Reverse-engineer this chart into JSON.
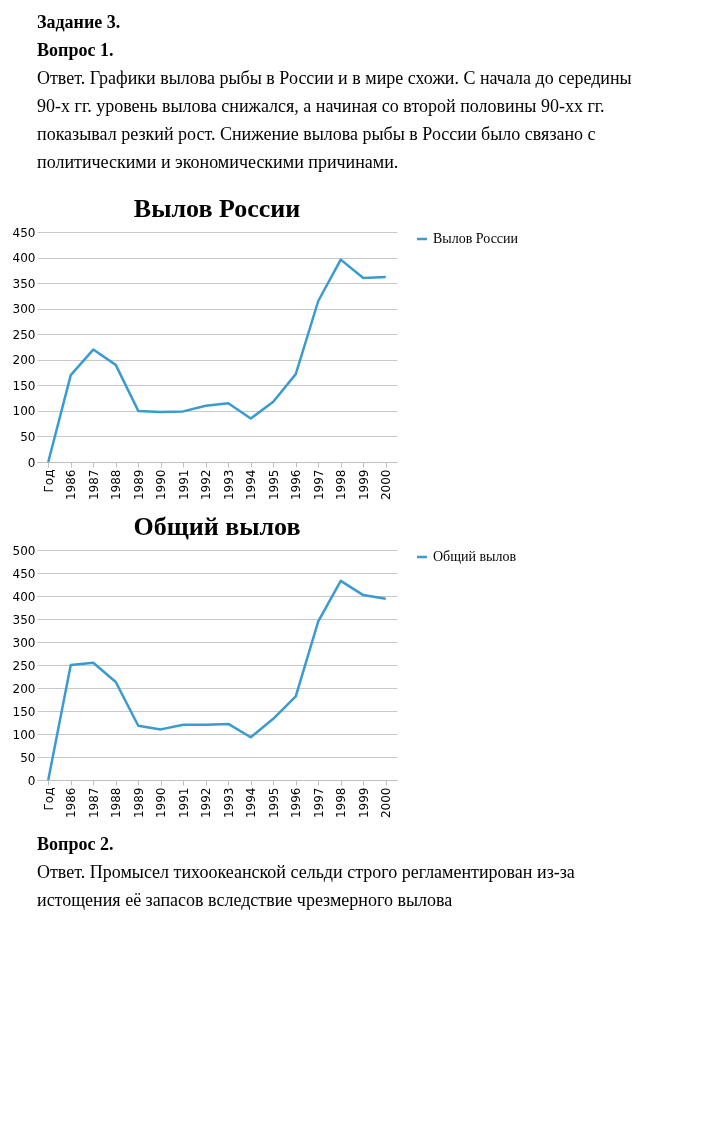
{
  "chart_data": [
    {
      "type": "line",
      "title": "Вылов России",
      "annotations": [
        "Задание 3.",
        "Вопрос 1.",
        "Ответ. Графики вылова рыбы в России и в мире схожи. С начала до середины 90-х гг. уровень вылова снижался, а начиная со второй половины 90-хх гг. показывал резкий рост. Снижение вылова рыбы в России было связано с политическими и экономическими причинами."
      ],
      "categories": [
        "Год",
        "1986",
        "1987",
        "1988",
        "1989",
        "1990",
        "1991",
        "1992",
        "1993",
        "1994",
        "1995",
        "1996",
        "1997",
        "1998",
        "1999",
        "2000"
      ],
      "series": [
        {
          "name": "Вылов России",
          "color": "#3a9bd0",
          "values": [
            0,
            170,
            220,
            190,
            100,
            98,
            99,
            110,
            115,
            85,
            118,
            172,
            315,
            396,
            360,
            362
          ]
        }
      ],
      "ylim": [
        0,
        450
      ],
      "yticks": [
        0,
        50,
        100,
        150,
        200,
        250,
        300,
        350,
        400,
        450
      ],
      "grid": "y",
      "legend": "right"
    },
    {
      "type": "line",
      "title": "Общий вылов",
      "annotations": [
        "Вопрос 2.",
        "Ответ. Промысел тихоокеанской сельди строго регламентирован из-за истощения её запасов вследствие чрезмерного вылова"
      ],
      "categories": [
        "Год",
        "1986",
        "1987",
        "1988",
        "1989",
        "1990",
        "1991",
        "1992",
        "1993",
        "1994",
        "1995",
        "1996",
        "1997",
        "1998",
        "1999",
        "2000"
      ],
      "series": [
        {
          "name": "Общий вылов",
          "color": "#3a9bd0",
          "values": [
            0,
            250,
            255,
            213,
            118,
            110,
            120,
            120,
            122,
            93,
            133,
            182,
            345,
            433,
            402,
            394
          ]
        }
      ],
      "ylim": [
        0,
        500
      ],
      "yticks": [
        0,
        50,
        100,
        150,
        200,
        250,
        300,
        350,
        400,
        450,
        500
      ],
      "grid": "y",
      "legend": "right"
    }
  ]
}
